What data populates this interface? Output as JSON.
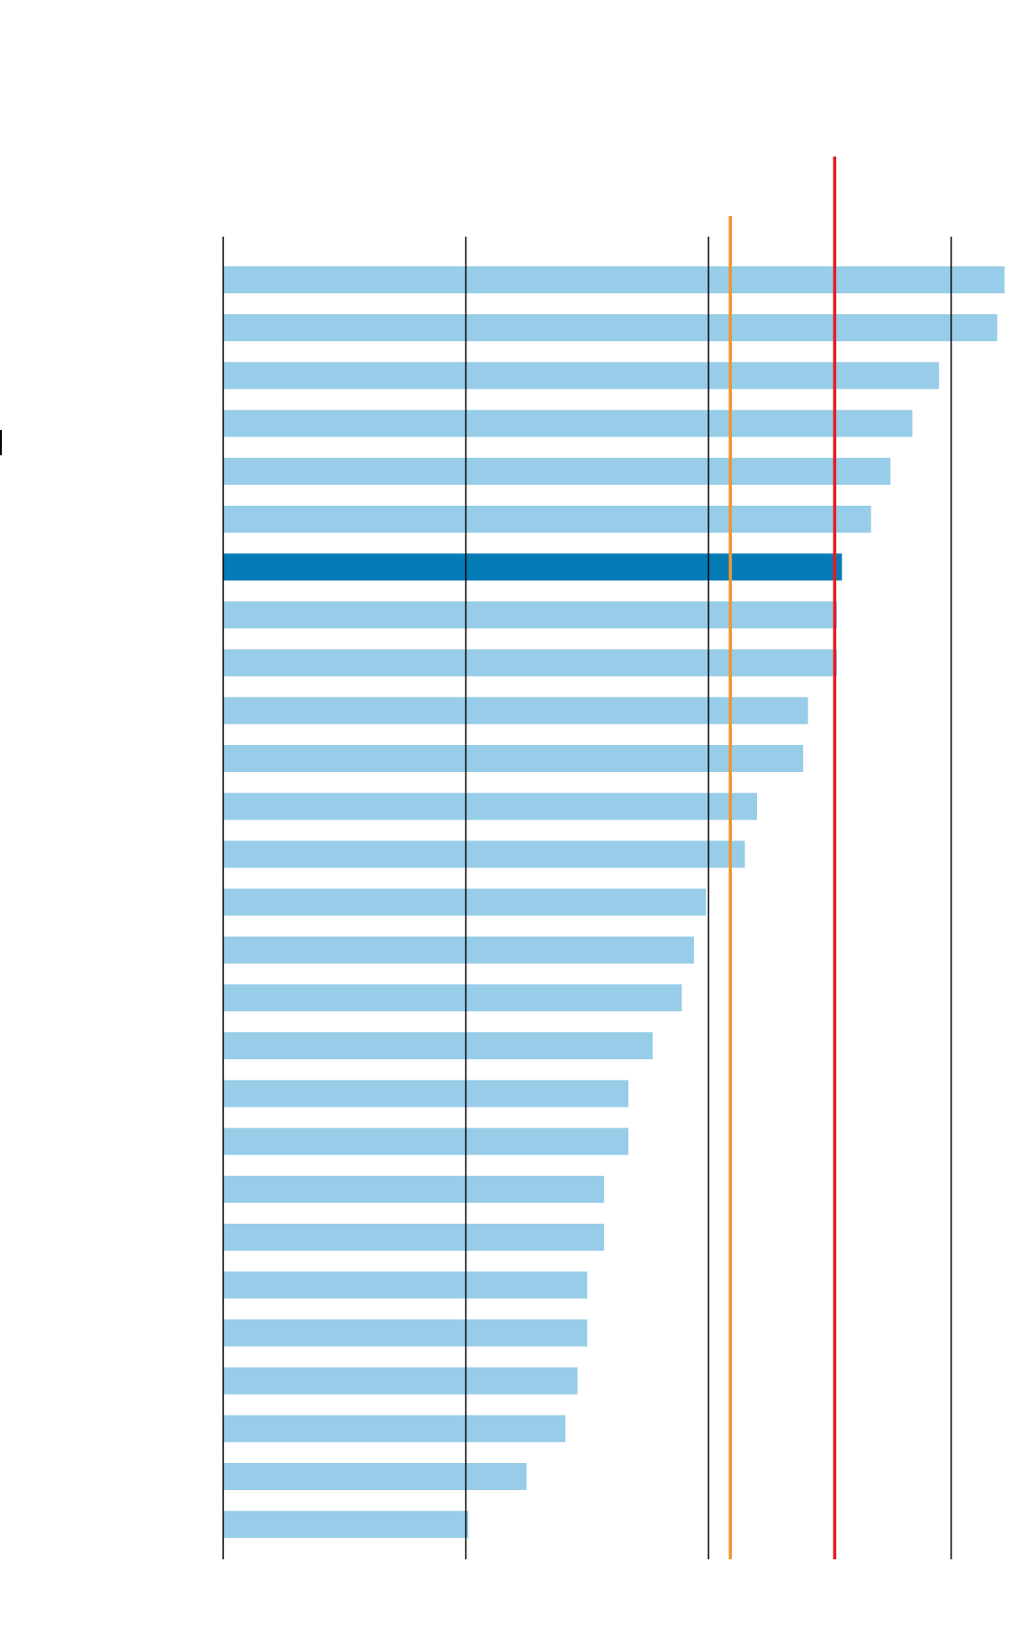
{
  "chart_data": {
    "type": "barh",
    "categories": [
      null,
      null,
      null,
      null,
      null,
      null,
      null,
      null,
      null,
      null,
      null,
      null,
      null,
      null,
      null,
      null,
      null,
      null,
      null,
      null,
      null,
      null,
      null,
      null,
      null,
      null,
      null
    ],
    "values": [
      32.2,
      31.9,
      29.5,
      28.4,
      27.5,
      26.7,
      25.5,
      25.3,
      25.3,
      24.1,
      23.9,
      22.0,
      21.5,
      19.9,
      19.4,
      18.9,
      17.7,
      16.7,
      16.7,
      15.7,
      15.7,
      15.0,
      15.0,
      14.6,
      14.1,
      12.5,
      10.1
    ],
    "colors": [
      "#97cde8",
      "#97cde8",
      "#97cde8",
      "#97cde8",
      "#97cde8",
      "#97cde8",
      "#057cb6",
      "#97cde8",
      "#97cde8",
      "#97cde8",
      "#97cde8",
      "#97cde8",
      "#97cde8",
      "#97cde8",
      "#97cde8",
      "#97cde8",
      "#97cde8",
      "#97cde8",
      "#97cde8",
      "#97cde8",
      "#97cde8",
      "#97cde8",
      "#97cde8",
      "#97cde8",
      "#97cde8",
      "#97cde8",
      "#97cde8"
    ],
    "xlim": [
      0,
      32.5
    ],
    "xticks": [
      0,
      10,
      20,
      30
    ],
    "grid": true,
    "reference_lines": [
      {
        "value": 20.9,
        "color": "#f0962e"
      },
      {
        "value": 25.2,
        "color": "#e31e24"
      }
    ]
  }
}
